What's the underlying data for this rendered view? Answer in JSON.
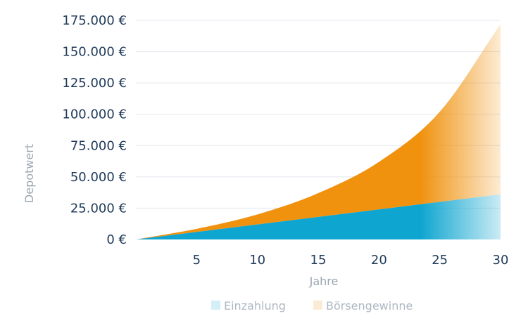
{
  "chart_data": {
    "type": "area",
    "stacked": true,
    "xlabel": "Jahre",
    "ylabel": "Depotwert",
    "xlim": [
      0,
      30
    ],
    "ylim": [
      0,
      175000
    ],
    "x_ticks": [
      5,
      10,
      15,
      20,
      25,
      30
    ],
    "y_ticks": [
      0,
      25000,
      50000,
      75000,
      100000,
      125000,
      150000,
      175000
    ],
    "y_tick_labels": [
      "0 €",
      "25.000 €",
      "50.000 €",
      "75.000 €",
      "100.000 €",
      "125.000 €",
      "150.000 €",
      "175.000 €"
    ],
    "grid": true,
    "legend": "bottom",
    "x": [
      0,
      5,
      10,
      15,
      20,
      25,
      30
    ],
    "series": [
      {
        "name": "Einzahlung",
        "color": "#0ea5d0",
        "values": [
          0,
          6000,
          12000,
          18000,
          24000,
          30000,
          36000
        ]
      },
      {
        "name": "Börsengewinne",
        "color": "#f0920e",
        "values": [
          0,
          2500,
          8000,
          19000,
          38000,
          72000,
          136000
        ]
      }
    ]
  }
}
